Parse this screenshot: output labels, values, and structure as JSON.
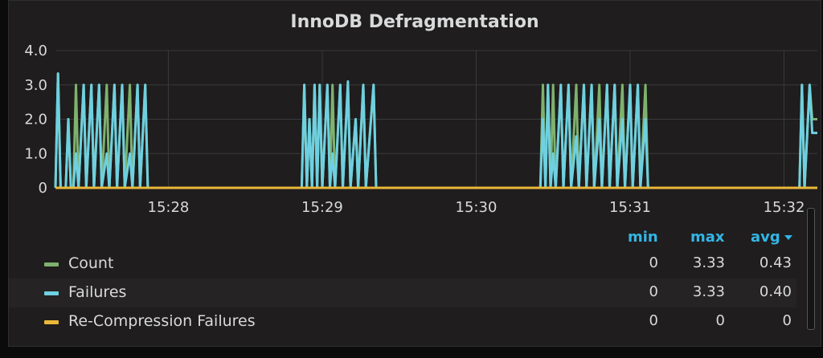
{
  "panel": {
    "title": "InnoDB Defragmentation"
  },
  "legend": {
    "headers": {
      "min": "min",
      "max": "max",
      "avg": "avg"
    },
    "rows": [
      {
        "name": "Count",
        "min": "0",
        "max": "3.33",
        "avg": "0.43",
        "color": "#7eb26d"
      },
      {
        "name": "Failures",
        "min": "0",
        "max": "3.33",
        "avg": "0.40",
        "color": "#6ed0e0"
      },
      {
        "name": "Re-Compression Failures",
        "min": "0",
        "max": "0",
        "avg": "0",
        "color": "#eab839"
      }
    ]
  },
  "chart_data": {
    "type": "line",
    "title": "InnoDB Defragmentation",
    "ylim": [
      0,
      4
    ],
    "y_ticks": [
      "0",
      "1.0",
      "2.0",
      "3.0",
      "4.0"
    ],
    "x_ticks": [
      "15:28",
      "15:29",
      "15:30",
      "15:31",
      "15:32"
    ],
    "xlim": [
      "15:27:16",
      "15:32:13"
    ],
    "grid": true,
    "series": [
      {
        "name": "Count",
        "color": "#7eb26d",
        "points": [
          [
            "15:27:16",
            0
          ],
          [
            "15:27:17",
            3.33
          ],
          [
            "15:27:18",
            0
          ],
          [
            "15:27:20",
            0
          ],
          [
            "15:27:21",
            2
          ],
          [
            "15:27:22",
            0
          ],
          [
            "15:27:23",
            0
          ],
          [
            "15:27:24",
            3
          ],
          [
            "15:27:25",
            0
          ],
          [
            "15:27:27",
            3
          ],
          [
            "15:27:28",
            0
          ],
          [
            "15:27:30",
            3
          ],
          [
            "15:27:31",
            0
          ],
          [
            "15:27:33",
            3
          ],
          [
            "15:27:34",
            0
          ],
          [
            "15:27:36",
            3
          ],
          [
            "15:27:37",
            0
          ],
          [
            "15:27:39",
            3
          ],
          [
            "15:27:40",
            0
          ],
          [
            "15:27:42",
            3
          ],
          [
            "15:27:43",
            0
          ],
          [
            "15:27:45",
            3
          ],
          [
            "15:27:46",
            0
          ],
          [
            "15:27:48",
            3
          ],
          [
            "15:27:49",
            0
          ],
          [
            "15:27:51",
            3
          ],
          [
            "15:27:52",
            0
          ],
          [
            "15:27:55",
            0
          ],
          [
            "15:28:52",
            0
          ],
          [
            "15:28:53",
            3
          ],
          [
            "15:28:54",
            0
          ],
          [
            "15:28:55",
            2
          ],
          [
            "15:28:56",
            0
          ],
          [
            "15:28:57",
            3
          ],
          [
            "15:28:58",
            0
          ],
          [
            "15:28:59",
            3
          ],
          [
            "15:29:00",
            0
          ],
          [
            "15:29:02",
            3
          ],
          [
            "15:29:03",
            0
          ],
          [
            "15:29:04",
            3
          ],
          [
            "15:29:05",
            0
          ],
          [
            "15:29:07",
            3
          ],
          [
            "15:29:08",
            0
          ],
          [
            "15:29:10",
            3
          ],
          [
            "15:29:11",
            0
          ],
          [
            "15:29:13",
            2
          ],
          [
            "15:29:14",
            0
          ],
          [
            "15:29:16",
            3
          ],
          [
            "15:29:17",
            0
          ],
          [
            "15:29:20",
            3
          ],
          [
            "15:29:21",
            0
          ],
          [
            "15:29:24",
            0
          ],
          [
            "15:30:25",
            0
          ],
          [
            "15:30:26",
            3
          ],
          [
            "15:30:27",
            0
          ],
          [
            "15:30:28",
            3
          ],
          [
            "15:30:29",
            0
          ],
          [
            "15:30:30",
            3
          ],
          [
            "15:30:31",
            0
          ],
          [
            "15:30:33",
            3
          ],
          [
            "15:30:34",
            0
          ],
          [
            "15:30:36",
            3
          ],
          [
            "15:30:37",
            0
          ],
          [
            "15:30:39",
            3
          ],
          [
            "15:30:40",
            0
          ],
          [
            "15:30:42",
            3
          ],
          [
            "15:30:43",
            0
          ],
          [
            "15:30:45",
            3
          ],
          [
            "15:30:46",
            0
          ],
          [
            "15:30:48",
            3
          ],
          [
            "15:30:49",
            0
          ],
          [
            "15:30:51",
            3
          ],
          [
            "15:30:52",
            0
          ],
          [
            "15:30:54",
            3
          ],
          [
            "15:30:55",
            0
          ],
          [
            "15:30:57",
            3
          ],
          [
            "15:30:58",
            0
          ],
          [
            "15:31:00",
            3
          ],
          [
            "15:31:01",
            0
          ],
          [
            "15:31:03",
            3
          ],
          [
            "15:31:04",
            0
          ],
          [
            "15:31:06",
            3
          ],
          [
            "15:31:07",
            0
          ],
          [
            "15:31:10",
            0
          ],
          [
            "15:32:06",
            0
          ],
          [
            "15:32:07",
            3
          ],
          [
            "15:32:08",
            0
          ],
          [
            "15:32:10",
            3
          ],
          [
            "15:32:11",
            2
          ],
          [
            "15:32:13",
            2
          ]
        ]
      },
      {
        "name": "Failures",
        "color": "#6ed0e0",
        "points": [
          [
            "15:27:16",
            0
          ],
          [
            "15:27:17",
            3.33
          ],
          [
            "15:27:18",
            0
          ],
          [
            "15:27:20",
            0
          ],
          [
            "15:27:21",
            2
          ],
          [
            "15:27:22",
            0
          ],
          [
            "15:27:23",
            0
          ],
          [
            "15:27:24",
            1
          ],
          [
            "15:27:25",
            0
          ],
          [
            "15:27:27",
            3
          ],
          [
            "15:27:28",
            0
          ],
          [
            "15:27:30",
            3
          ],
          [
            "15:27:31",
            0
          ],
          [
            "15:27:33",
            3
          ],
          [
            "15:27:34",
            0
          ],
          [
            "15:27:36",
            1
          ],
          [
            "15:27:37",
            0
          ],
          [
            "15:27:39",
            3
          ],
          [
            "15:27:40",
            0
          ],
          [
            "15:27:42",
            3
          ],
          [
            "15:27:43",
            0
          ],
          [
            "15:27:45",
            1
          ],
          [
            "15:27:46",
            0
          ],
          [
            "15:27:48",
            3
          ],
          [
            "15:27:49",
            0
          ],
          [
            "15:27:51",
            3
          ],
          [
            "15:27:52",
            0
          ],
          [
            "15:27:55",
            0
          ],
          [
            "15:28:52",
            0
          ],
          [
            "15:28:53",
            3
          ],
          [
            "15:28:54",
            0
          ],
          [
            "15:28:55",
            2
          ],
          [
            "15:28:56",
            0
          ],
          [
            "15:28:57",
            3
          ],
          [
            "15:28:58",
            0
          ],
          [
            "15:28:59",
            3
          ],
          [
            "15:29:00",
            0
          ],
          [
            "15:29:02",
            3
          ],
          [
            "15:29:03",
            0
          ],
          [
            "15:29:04",
            1
          ],
          [
            "15:29:05",
            0
          ],
          [
            "15:29:07",
            3
          ],
          [
            "15:29:08",
            0
          ],
          [
            "15:29:10",
            3.1
          ],
          [
            "15:29:11",
            0
          ],
          [
            "15:29:13",
            2
          ],
          [
            "15:29:14",
            0
          ],
          [
            "15:29:16",
            3
          ],
          [
            "15:29:17",
            0
          ],
          [
            "15:29:20",
            3
          ],
          [
            "15:29:21",
            0
          ],
          [
            "15:29:24",
            0
          ],
          [
            "15:30:25",
            0
          ],
          [
            "15:30:26",
            2
          ],
          [
            "15:30:27",
            0
          ],
          [
            "15:30:28",
            3
          ],
          [
            "15:30:29",
            0
          ],
          [
            "15:30:30",
            1
          ],
          [
            "15:30:31",
            0
          ],
          [
            "15:30:33",
            3
          ],
          [
            "15:30:34",
            0
          ],
          [
            "15:30:36",
            3
          ],
          [
            "15:30:37",
            0
          ],
          [
            "15:30:39",
            1.5
          ],
          [
            "15:30:40",
            0
          ],
          [
            "15:30:42",
            3
          ],
          [
            "15:30:43",
            0
          ],
          [
            "15:30:45",
            3
          ],
          [
            "15:30:46",
            0
          ],
          [
            "15:30:48",
            2
          ],
          [
            "15:30:49",
            0
          ],
          [
            "15:30:51",
            3
          ],
          [
            "15:30:52",
            0
          ],
          [
            "15:30:54",
            3
          ],
          [
            "15:30:55",
            0
          ],
          [
            "15:30:57",
            2
          ],
          [
            "15:30:58",
            0
          ],
          [
            "15:31:00",
            3
          ],
          [
            "15:31:01",
            0
          ],
          [
            "15:31:03",
            3
          ],
          [
            "15:31:04",
            0
          ],
          [
            "15:31:06",
            2
          ],
          [
            "15:31:07",
            0
          ],
          [
            "15:31:10",
            0
          ],
          [
            "15:32:06",
            0
          ],
          [
            "15:32:07",
            3
          ],
          [
            "15:32:08",
            0
          ],
          [
            "15:32:10",
            3
          ],
          [
            "15:32:11",
            1.6
          ],
          [
            "15:32:13",
            1.6
          ]
        ]
      },
      {
        "name": "Re-Compression Failures",
        "color": "#eab839",
        "points": [
          [
            "15:27:16",
            0
          ],
          [
            "15:32:13",
            0
          ]
        ]
      }
    ]
  }
}
